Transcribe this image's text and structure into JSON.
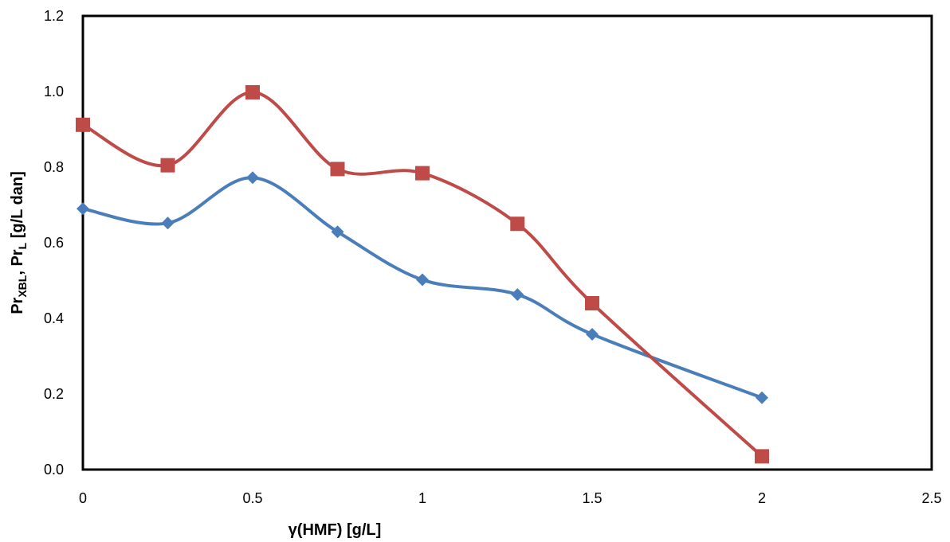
{
  "chart_data": {
    "type": "line",
    "xlabel": "γ(HMF) [g/L]",
    "ylabel": {
      "parts": [
        {
          "text": "Pr",
          "sub": false
        },
        {
          "text": "XBL",
          "sub": true
        },
        {
          "text": ", Pr",
          "sub": false
        },
        {
          "text": "L",
          "sub": true
        },
        {
          "text": " [g/L dan]",
          "sub": false
        }
      ]
    },
    "xlim": [
      0,
      2.5
    ],
    "ylim": [
      0,
      1.2
    ],
    "x_ticks": [
      "0",
      "0.5",
      "1",
      "1.5",
      "2",
      "2.5"
    ],
    "x_tick_values": [
      0,
      0.5,
      1,
      1.5,
      2,
      2.5
    ],
    "y_ticks": [
      "0.0",
      "0.2",
      "0.4",
      "0.6",
      "0.8",
      "1.0",
      "1.2"
    ],
    "y_tick_values": [
      0,
      0.2,
      0.4,
      0.6,
      0.8,
      1.0,
      1.2
    ],
    "grid": false,
    "smoothed": true,
    "series": [
      {
        "color": "#4A7EBB",
        "marker": "diamond",
        "x": [
          0,
          0.25,
          0.5,
          0.75,
          1.0,
          1.28,
          1.5,
          2.0
        ],
        "y": [
          0.69,
          0.652,
          0.772,
          0.629,
          0.502,
          0.463,
          0.358,
          0.19
        ]
      },
      {
        "color": "#BE4B48",
        "marker": "square",
        "x": [
          0,
          0.25,
          0.5,
          0.75,
          1.0,
          1.28,
          1.5,
          2.0
        ],
        "y": [
          0.912,
          0.805,
          0.998,
          0.795,
          0.784,
          0.65,
          0.44,
          0.035
        ]
      }
    ]
  }
}
